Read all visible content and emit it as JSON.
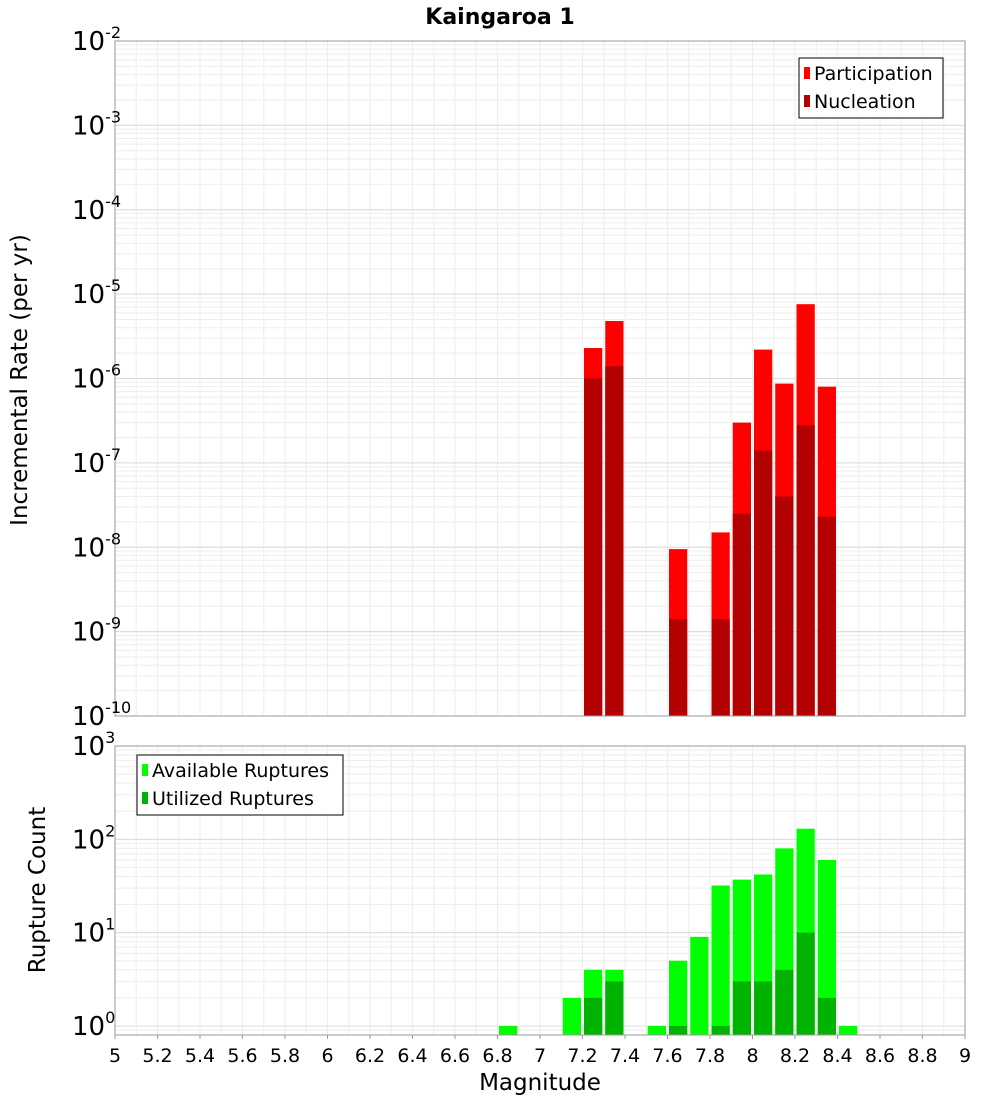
{
  "chart_data": [
    {
      "type": "bar",
      "title": "Kaingaroa 1",
      "xlabel": "",
      "ylabel": "Incremental Rate (per yr)",
      "xlim": [
        5,
        9
      ],
      "ylim": [
        1e-10,
        0.01
      ],
      "yscale": "log",
      "y_tick_exponents": [
        -2,
        -3,
        -4,
        -5,
        -6,
        -7,
        -8,
        -9,
        -10
      ],
      "grid": true,
      "legend_position": "top-right",
      "bar_width": 0.1,
      "series": [
        {
          "name": "Participation",
          "color": "#ff0000",
          "x": [
            7.25,
            7.35,
            7.65,
            7.85,
            7.95,
            8.05,
            8.15,
            8.25,
            8.35
          ],
          "values": [
            2.3e-06,
            4.8e-06,
            9.5e-09,
            1.5e-08,
            3e-07,
            2.2e-06,
            8.7e-07,
            7.6e-06,
            8e-07
          ]
        },
        {
          "name": "Nucleation",
          "color": "#b30000",
          "x": [
            7.25,
            7.35,
            7.65,
            7.85,
            7.95,
            8.05,
            8.15,
            8.25,
            8.35
          ],
          "values": [
            1e-06,
            1.4e-06,
            1.4e-09,
            1.4e-09,
            2.5e-08,
            1.4e-07,
            4e-08,
            2.8e-07,
            2.3e-08
          ]
        }
      ]
    },
    {
      "type": "bar",
      "title": "",
      "xlabel": "Magnitude",
      "ylabel": "Rupture Count",
      "xlim": [
        5,
        9
      ],
      "ylim": [
        0.8,
        1000
      ],
      "yscale": "log",
      "y_tick_exponents": [
        0,
        1,
        2,
        3
      ],
      "x_ticks": [
        "5",
        "5.2",
        "5.4",
        "5.6",
        "5.8",
        "6",
        "6.2",
        "6.4",
        "6.6",
        "6.8",
        "7",
        "7.2",
        "7.4",
        "7.6",
        "7.8",
        "8",
        "8.2",
        "8.4",
        "8.6",
        "8.8",
        "9"
      ],
      "grid": true,
      "legend_position": "top-left",
      "bar_width": 0.1,
      "series": [
        {
          "name": "Available Ruptures",
          "color": "#00ff00",
          "x": [
            6.85,
            7.15,
            7.25,
            7.35,
            7.55,
            7.65,
            7.75,
            7.85,
            7.95,
            8.05,
            8.15,
            8.25,
            8.35,
            8.45
          ],
          "values": [
            1,
            2,
            4,
            4,
            1,
            5,
            9,
            32,
            37,
            42,
            80,
            130,
            60,
            1
          ]
        },
        {
          "name": "Utilized Ruptures",
          "color": "#00b300",
          "x": [
            7.25,
            7.35,
            7.65,
            7.85,
            7.95,
            8.05,
            8.15,
            8.25,
            8.35
          ],
          "values": [
            2,
            3,
            1,
            1,
            3,
            3,
            4,
            10,
            2
          ]
        }
      ]
    }
  ]
}
